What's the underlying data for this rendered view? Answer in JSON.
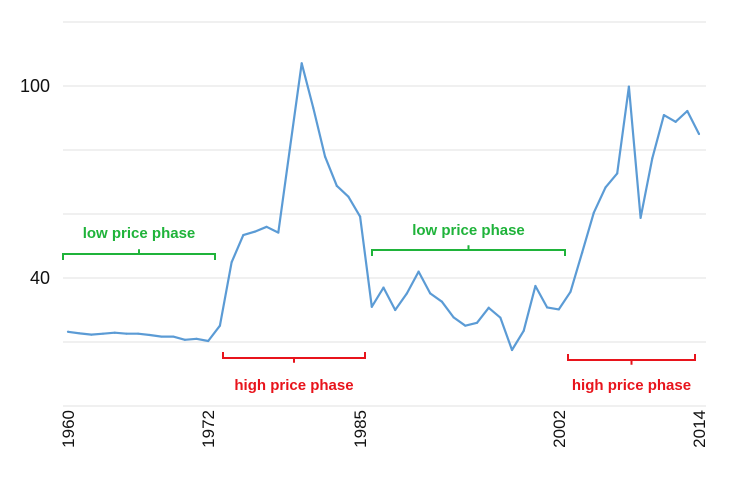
{
  "chart_data": {
    "type": "line",
    "title": "",
    "xlabel": "",
    "ylabel": "",
    "xlim": [
      1960,
      2014
    ],
    "ylim": [
      0,
      120
    ],
    "y_gridlines": [
      0,
      20,
      40,
      60,
      80,
      100,
      120
    ],
    "y_tick_labels": [
      {
        "value": 40,
        "label": "40"
      },
      {
        "value": 100,
        "label": "100"
      }
    ],
    "x_tick_labels": [
      {
        "value": 1960,
        "label": "1960"
      },
      {
        "value": 1972,
        "label": "1972"
      },
      {
        "value": 1985,
        "label": "1985"
      },
      {
        "value": 2002,
        "label": "2002"
      },
      {
        "value": 2014,
        "label": "2014"
      }
    ],
    "grid": true,
    "line_color": "#5b9bd5",
    "series": [
      {
        "x": [
          1960,
          1961,
          1962,
          1963,
          1964,
          1965,
          1966,
          1967,
          1968,
          1969,
          1970,
          1971,
          1972,
          1973,
          1974,
          1975,
          1976,
          1977,
          1978,
          1979,
          1980,
          1981,
          1982,
          1983,
          1984,
          1985,
          1986,
          1987,
          1988,
          1989,
          1990,
          1991,
          1992,
          1993,
          1994,
          1995,
          1996,
          1997,
          1998,
          1999,
          2000,
          2001,
          2002,
          2003,
          2004,
          2005,
          2006,
          2007,
          2008,
          2009,
          2010,
          2011,
          2012,
          2013,
          2014
        ],
        "y": [
          23.2,
          22.7,
          22.3,
          22.6,
          22.9,
          22.6,
          22.6,
          22.2,
          21.7,
          21.7,
          20.7,
          21.0,
          20.3,
          25.1,
          44.9,
          53.4,
          54.5,
          56.0,
          54.2,
          80.7,
          107.1,
          93.0,
          77.9,
          68.8,
          65.4,
          59.2,
          31.0,
          37.0,
          30.0,
          35.2,
          42.0,
          35.2,
          32.6,
          27.7,
          25.1,
          26.0,
          30.7,
          27.6,
          17.5,
          23.5,
          37.5,
          30.8,
          30.2,
          35.7,
          47.9,
          60.4,
          68.3,
          72.7,
          99.8,
          58.8,
          77.4,
          90.9,
          88.8,
          92.2,
          85.0
        ]
      }
    ],
    "annotations": [
      {
        "label": "low price phase",
        "from": 1960,
        "to": 1972,
        "position": "above",
        "color": "#1fb33a"
      },
      {
        "label": "high price phase",
        "from": 1973,
        "to": 1985,
        "position": "below",
        "color": "#e8141c"
      },
      {
        "label": "low price phase",
        "from": 1985,
        "to": 2002,
        "position": "above",
        "color": "#1fb33a"
      },
      {
        "label": "high price phase",
        "from": 2002,
        "to": 2014,
        "position": "below",
        "color": "#e8141c"
      }
    ]
  }
}
